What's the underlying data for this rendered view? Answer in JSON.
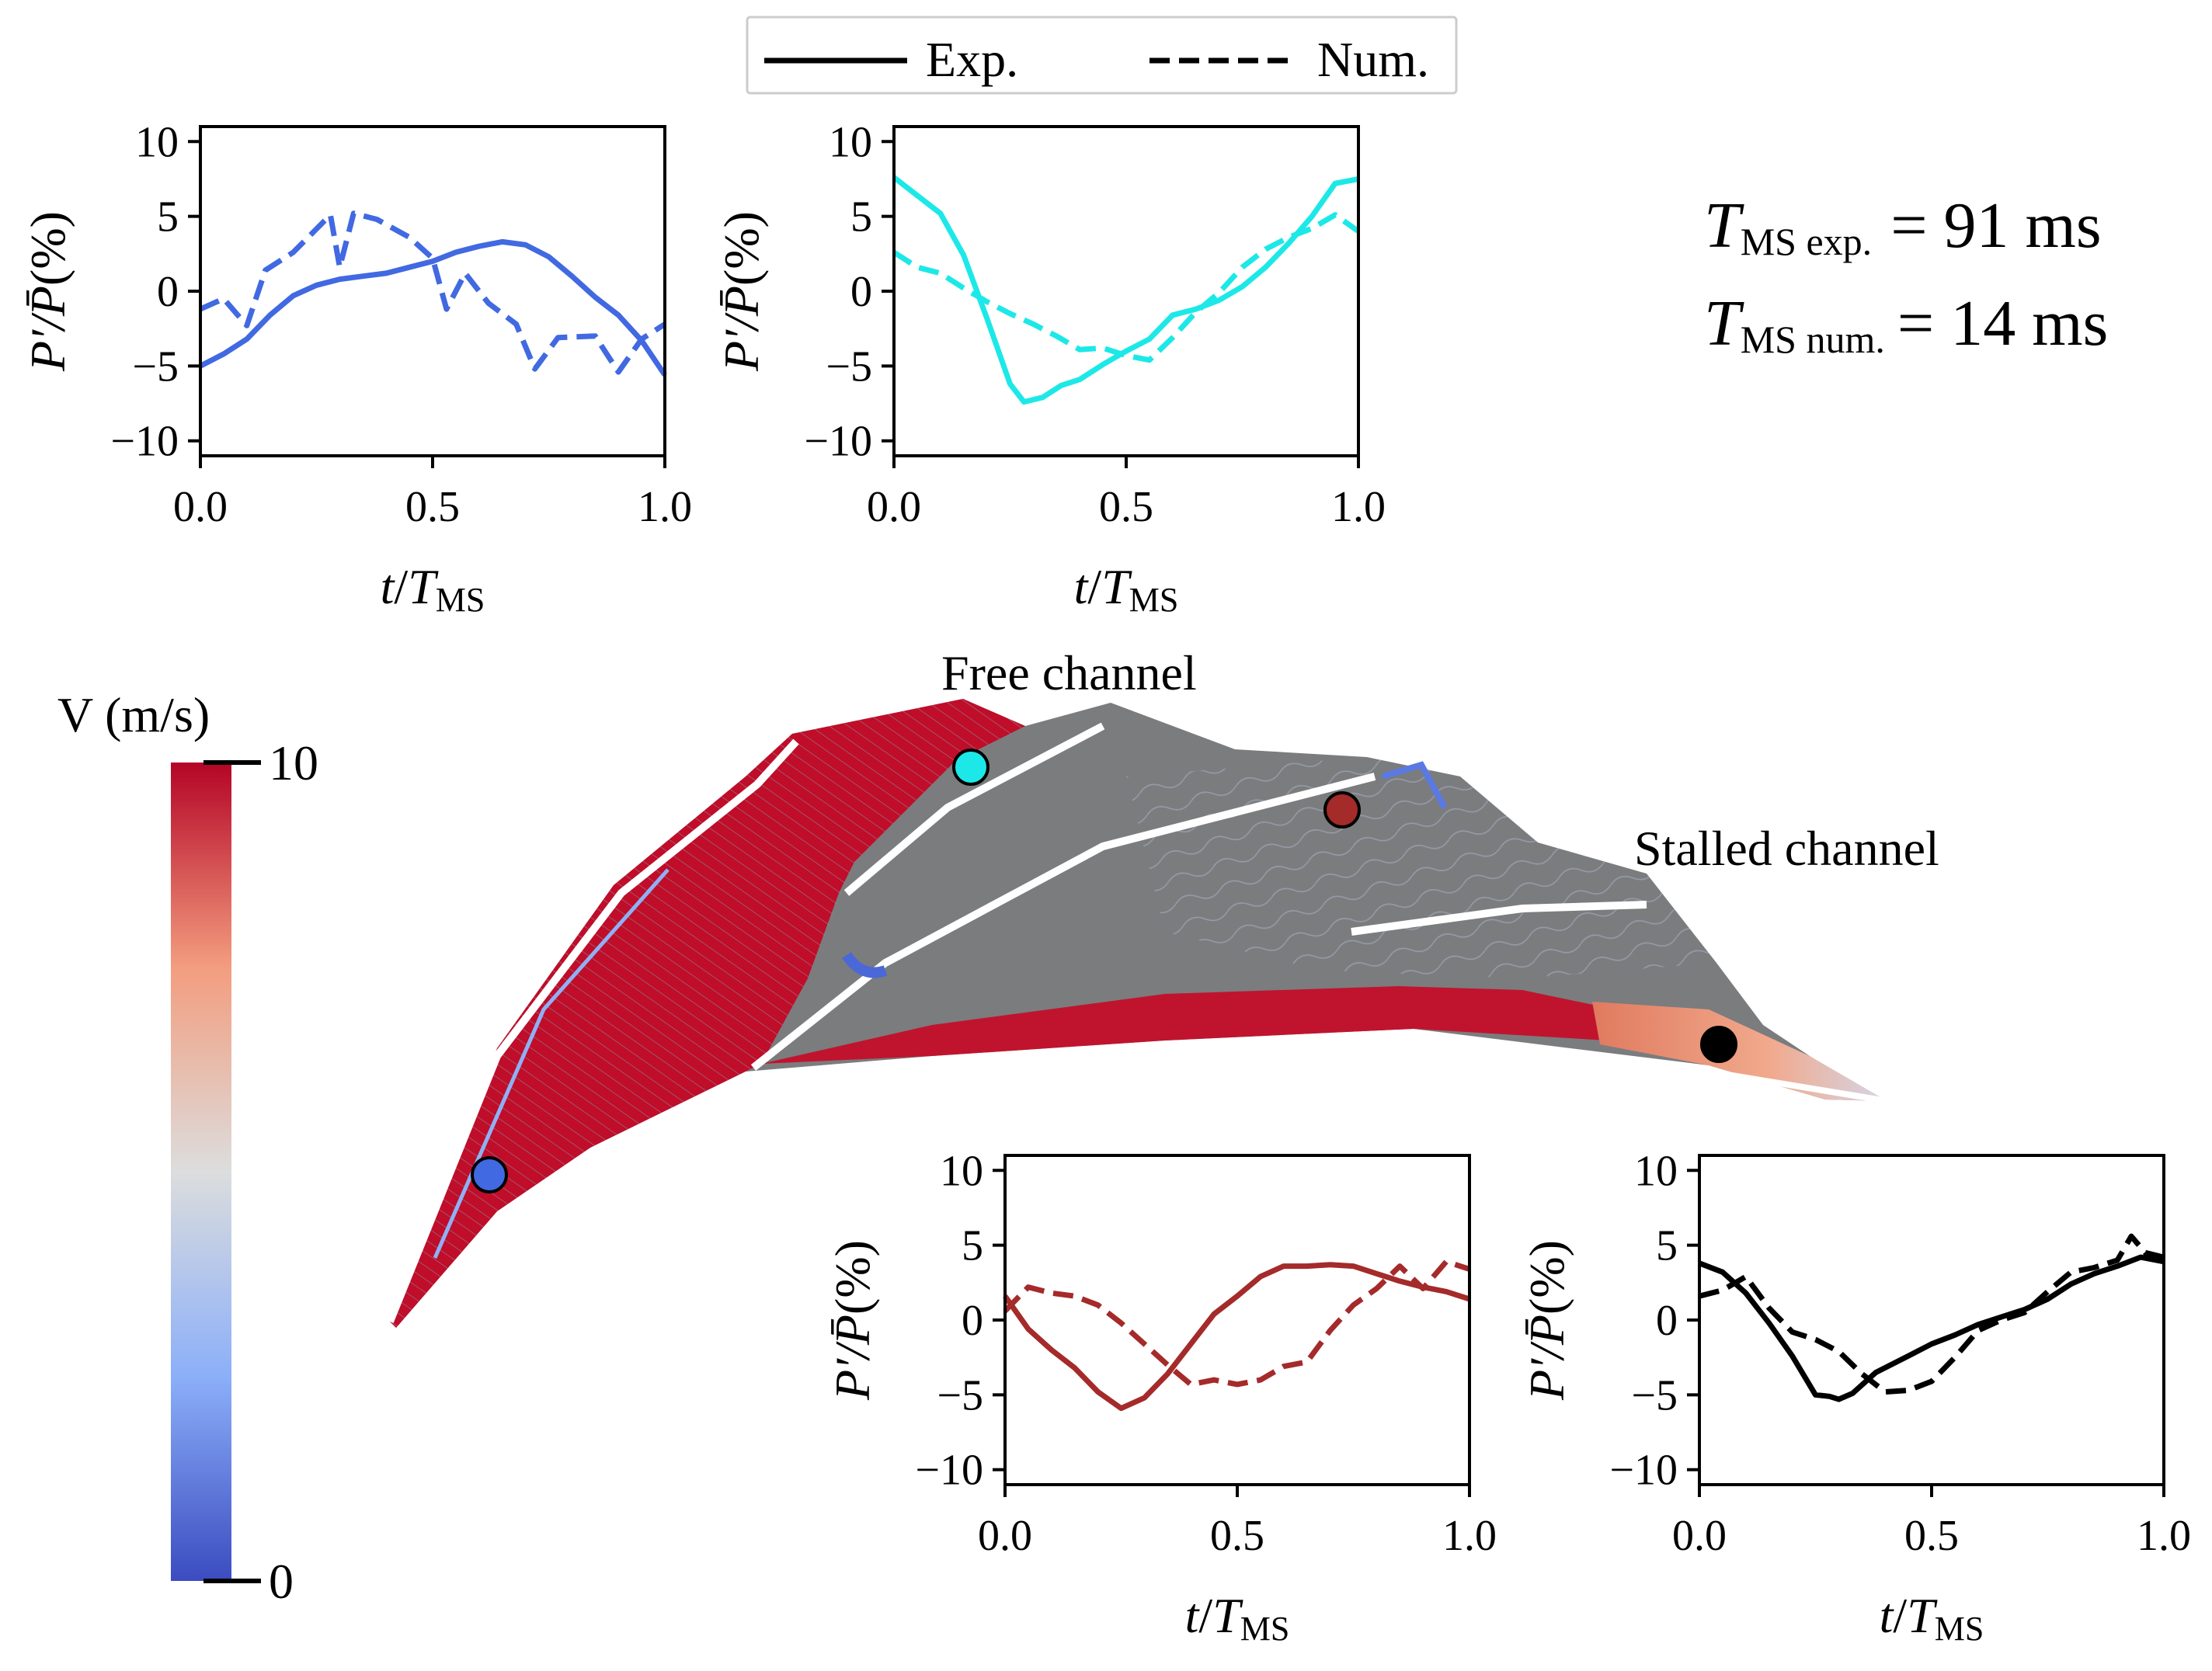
{
  "legend": {
    "exp_label": "Exp.",
    "num_label": "Num."
  },
  "period": {
    "exp_sub": "MS exp.",
    "exp_value": "= 91 ms",
    "num_sub": "MS num.",
    "num_value": "= 14 ms"
  },
  "colorbar": {
    "title": "V (m/s)",
    "max_label": "10",
    "min_label": "0",
    "range": [
      0,
      10
    ],
    "colormap": "coolwarm"
  },
  "field_labels": {
    "free": "Free channel",
    "stalled": "Stalled channel"
  },
  "probe_colors": {
    "blue": "#4169e1",
    "cyan": "#1de8e8",
    "red": "#a52a2a",
    "black": "#000000"
  },
  "chart_data": [
    {
      "type": "line",
      "id": "blue",
      "color": "#4169e1",
      "ylabel": "P′/P̄(%)",
      "xlabel": "t/TMS",
      "xlim": [
        0,
        1
      ],
      "ylim": [
        -11,
        11
      ],
      "xticks": [
        "0.0",
        "0.5",
        "1.0"
      ],
      "yticks": [
        "10",
        "5",
        "0",
        "−5",
        "−10"
      ],
      "series": [
        {
          "name": "Exp.",
          "style": "solid",
          "x": [
            0,
            0.05,
            0.1,
            0.15,
            0.2,
            0.25,
            0.3,
            0.35,
            0.4,
            0.45,
            0.5,
            0.55,
            0.6,
            0.65,
            0.7,
            0.75,
            0.8,
            0.85,
            0.9,
            0.95,
            1.0
          ],
          "y": [
            -5.0,
            -4.2,
            -3.2,
            -1.6,
            -0.3,
            0.4,
            0.8,
            1.0,
            1.2,
            1.6,
            2.0,
            2.6,
            3.0,
            3.3,
            3.1,
            2.3,
            1.0,
            -0.4,
            -1.6,
            -3.3,
            -5.6
          ]
        },
        {
          "name": "Num.",
          "style": "dashed",
          "x": [
            0,
            0.05,
            0.1,
            0.14,
            0.2,
            0.28,
            0.3,
            0.33,
            0.38,
            0.45,
            0.5,
            0.53,
            0.57,
            0.62,
            0.68,
            0.72,
            0.77,
            0.85,
            0.9,
            0.95,
            1.0
          ],
          "y": [
            -1.2,
            -0.5,
            -2.3,
            1.4,
            2.6,
            5.1,
            1.6,
            5.2,
            4.8,
            3.6,
            2.2,
            -1.2,
            1.2,
            -0.8,
            -2.2,
            -5.2,
            -3.1,
            -3.0,
            -5.4,
            -3.2,
            -2.2
          ]
        }
      ]
    },
    {
      "type": "line",
      "id": "cyan",
      "color": "#1de8e8",
      "ylabel": "P′/P̄(%)",
      "xlabel": "t/TMS",
      "xlim": [
        0,
        1
      ],
      "ylim": [
        -11,
        11
      ],
      "xticks": [
        "0.0",
        "0.5",
        "1.0"
      ],
      "yticks": [
        "10",
        "5",
        "0",
        "−5",
        "−10"
      ],
      "series": [
        {
          "name": "Exp.",
          "style": "solid",
          "x": [
            0,
            0.05,
            0.1,
            0.15,
            0.2,
            0.25,
            0.28,
            0.32,
            0.36,
            0.4,
            0.45,
            0.5,
            0.55,
            0.6,
            0.65,
            0.7,
            0.75,
            0.8,
            0.85,
            0.9,
            0.95,
            1.0
          ],
          "y": [
            7.6,
            6.4,
            5.2,
            2.4,
            -1.8,
            -6.2,
            -7.4,
            -7.1,
            -6.3,
            -5.9,
            -4.9,
            -4.0,
            -3.2,
            -1.6,
            -1.2,
            -0.6,
            0.3,
            1.6,
            3.2,
            5.0,
            7.2,
            7.5
          ]
        },
        {
          "name": "Num.",
          "style": "dashed",
          "x": [
            0,
            0.05,
            0.1,
            0.15,
            0.2,
            0.25,
            0.3,
            0.35,
            0.4,
            0.45,
            0.5,
            0.55,
            0.6,
            0.65,
            0.7,
            0.75,
            0.8,
            0.85,
            0.9,
            0.95,
            1.0
          ],
          "y": [
            2.6,
            1.6,
            1.2,
            0.2,
            -0.7,
            -1.5,
            -2.2,
            -3.0,
            -3.9,
            -3.8,
            -4.3,
            -4.6,
            -3.1,
            -1.4,
            -0.1,
            1.6,
            2.8,
            3.6,
            4.2,
            5.1,
            4.0
          ]
        }
      ]
    },
    {
      "type": "line",
      "id": "red",
      "color": "#a52a2a",
      "ylabel": "P′/P̄(%)",
      "xlabel": "t/TMS",
      "xlim": [
        0,
        1
      ],
      "ylim": [
        -11,
        11
      ],
      "xticks": [
        "0.0",
        "0.5",
        "1.0"
      ],
      "yticks": [
        "10",
        "5",
        "0",
        "−5",
        "−10"
      ],
      "series": [
        {
          "name": "Exp.",
          "style": "solid",
          "x": [
            0,
            0.05,
            0.1,
            0.15,
            0.2,
            0.25,
            0.3,
            0.35,
            0.4,
            0.45,
            0.5,
            0.55,
            0.6,
            0.65,
            0.7,
            0.75,
            0.8,
            0.85,
            0.9,
            0.95,
            1.0
          ],
          "y": [
            1.6,
            -0.6,
            -2.0,
            -3.2,
            -4.8,
            -5.9,
            -5.2,
            -3.6,
            -1.6,
            0.4,
            1.6,
            2.9,
            3.6,
            3.6,
            3.7,
            3.6,
            3.1,
            2.6,
            2.2,
            1.9,
            1.4
          ]
        },
        {
          "name": "Num.",
          "style": "dashed",
          "x": [
            0,
            0.05,
            0.1,
            0.15,
            0.2,
            0.25,
            0.3,
            0.35,
            0.4,
            0.45,
            0.5,
            0.55,
            0.6,
            0.65,
            0.7,
            0.75,
            0.8,
            0.85,
            0.9,
            0.95,
            1.0
          ],
          "y": [
            0.6,
            2.2,
            1.8,
            1.6,
            1.0,
            -0.2,
            -1.6,
            -3.0,
            -4.3,
            -4.0,
            -4.3,
            -4.0,
            -3.1,
            -2.8,
            -0.7,
            1.0,
            2.1,
            3.6,
            2.1,
            3.9,
            3.4
          ]
        }
      ]
    },
    {
      "type": "line",
      "id": "black",
      "color": "#000000",
      "ylabel": "P′/P̄(%)",
      "xlabel": "t/TMS",
      "xlim": [
        0,
        1
      ],
      "ylim": [
        -11,
        11
      ],
      "xticks": [
        "0.0",
        "0.5",
        "1.0"
      ],
      "yticks": [
        "10",
        "5",
        "0",
        "−5",
        "−10"
      ],
      "series": [
        {
          "name": "Exp.",
          "style": "solid",
          "x": [
            0,
            0.05,
            0.1,
            0.15,
            0.2,
            0.25,
            0.28,
            0.3,
            0.33,
            0.38,
            0.45,
            0.5,
            0.55,
            0.6,
            0.65,
            0.7,
            0.75,
            0.8,
            0.85,
            0.9,
            0.95,
            1.0
          ],
          "y": [
            3.8,
            3.2,
            1.8,
            -0.2,
            -2.4,
            -5.0,
            -5.1,
            -5.3,
            -4.9,
            -3.5,
            -2.4,
            -1.6,
            -1.0,
            -0.3,
            0.2,
            0.7,
            1.4,
            2.4,
            3.1,
            3.6,
            4.2,
            3.9
          ]
        },
        {
          "name": "Num.",
          "style": "dashed",
          "x": [
            0,
            0.05,
            0.1,
            0.15,
            0.2,
            0.25,
            0.3,
            0.35,
            0.4,
            0.45,
            0.5,
            0.55,
            0.6,
            0.65,
            0.7,
            0.75,
            0.8,
            0.85,
            0.9,
            0.93,
            0.96,
            1.0
          ],
          "y": [
            1.6,
            2.0,
            2.9,
            0.8,
            -0.8,
            -1.3,
            -2.1,
            -3.6,
            -4.8,
            -4.7,
            -4.1,
            -2.5,
            -0.7,
            0.0,
            0.5,
            1.9,
            3.2,
            3.5,
            4.0,
            5.6,
            4.5,
            4.2
          ]
        }
      ]
    }
  ]
}
